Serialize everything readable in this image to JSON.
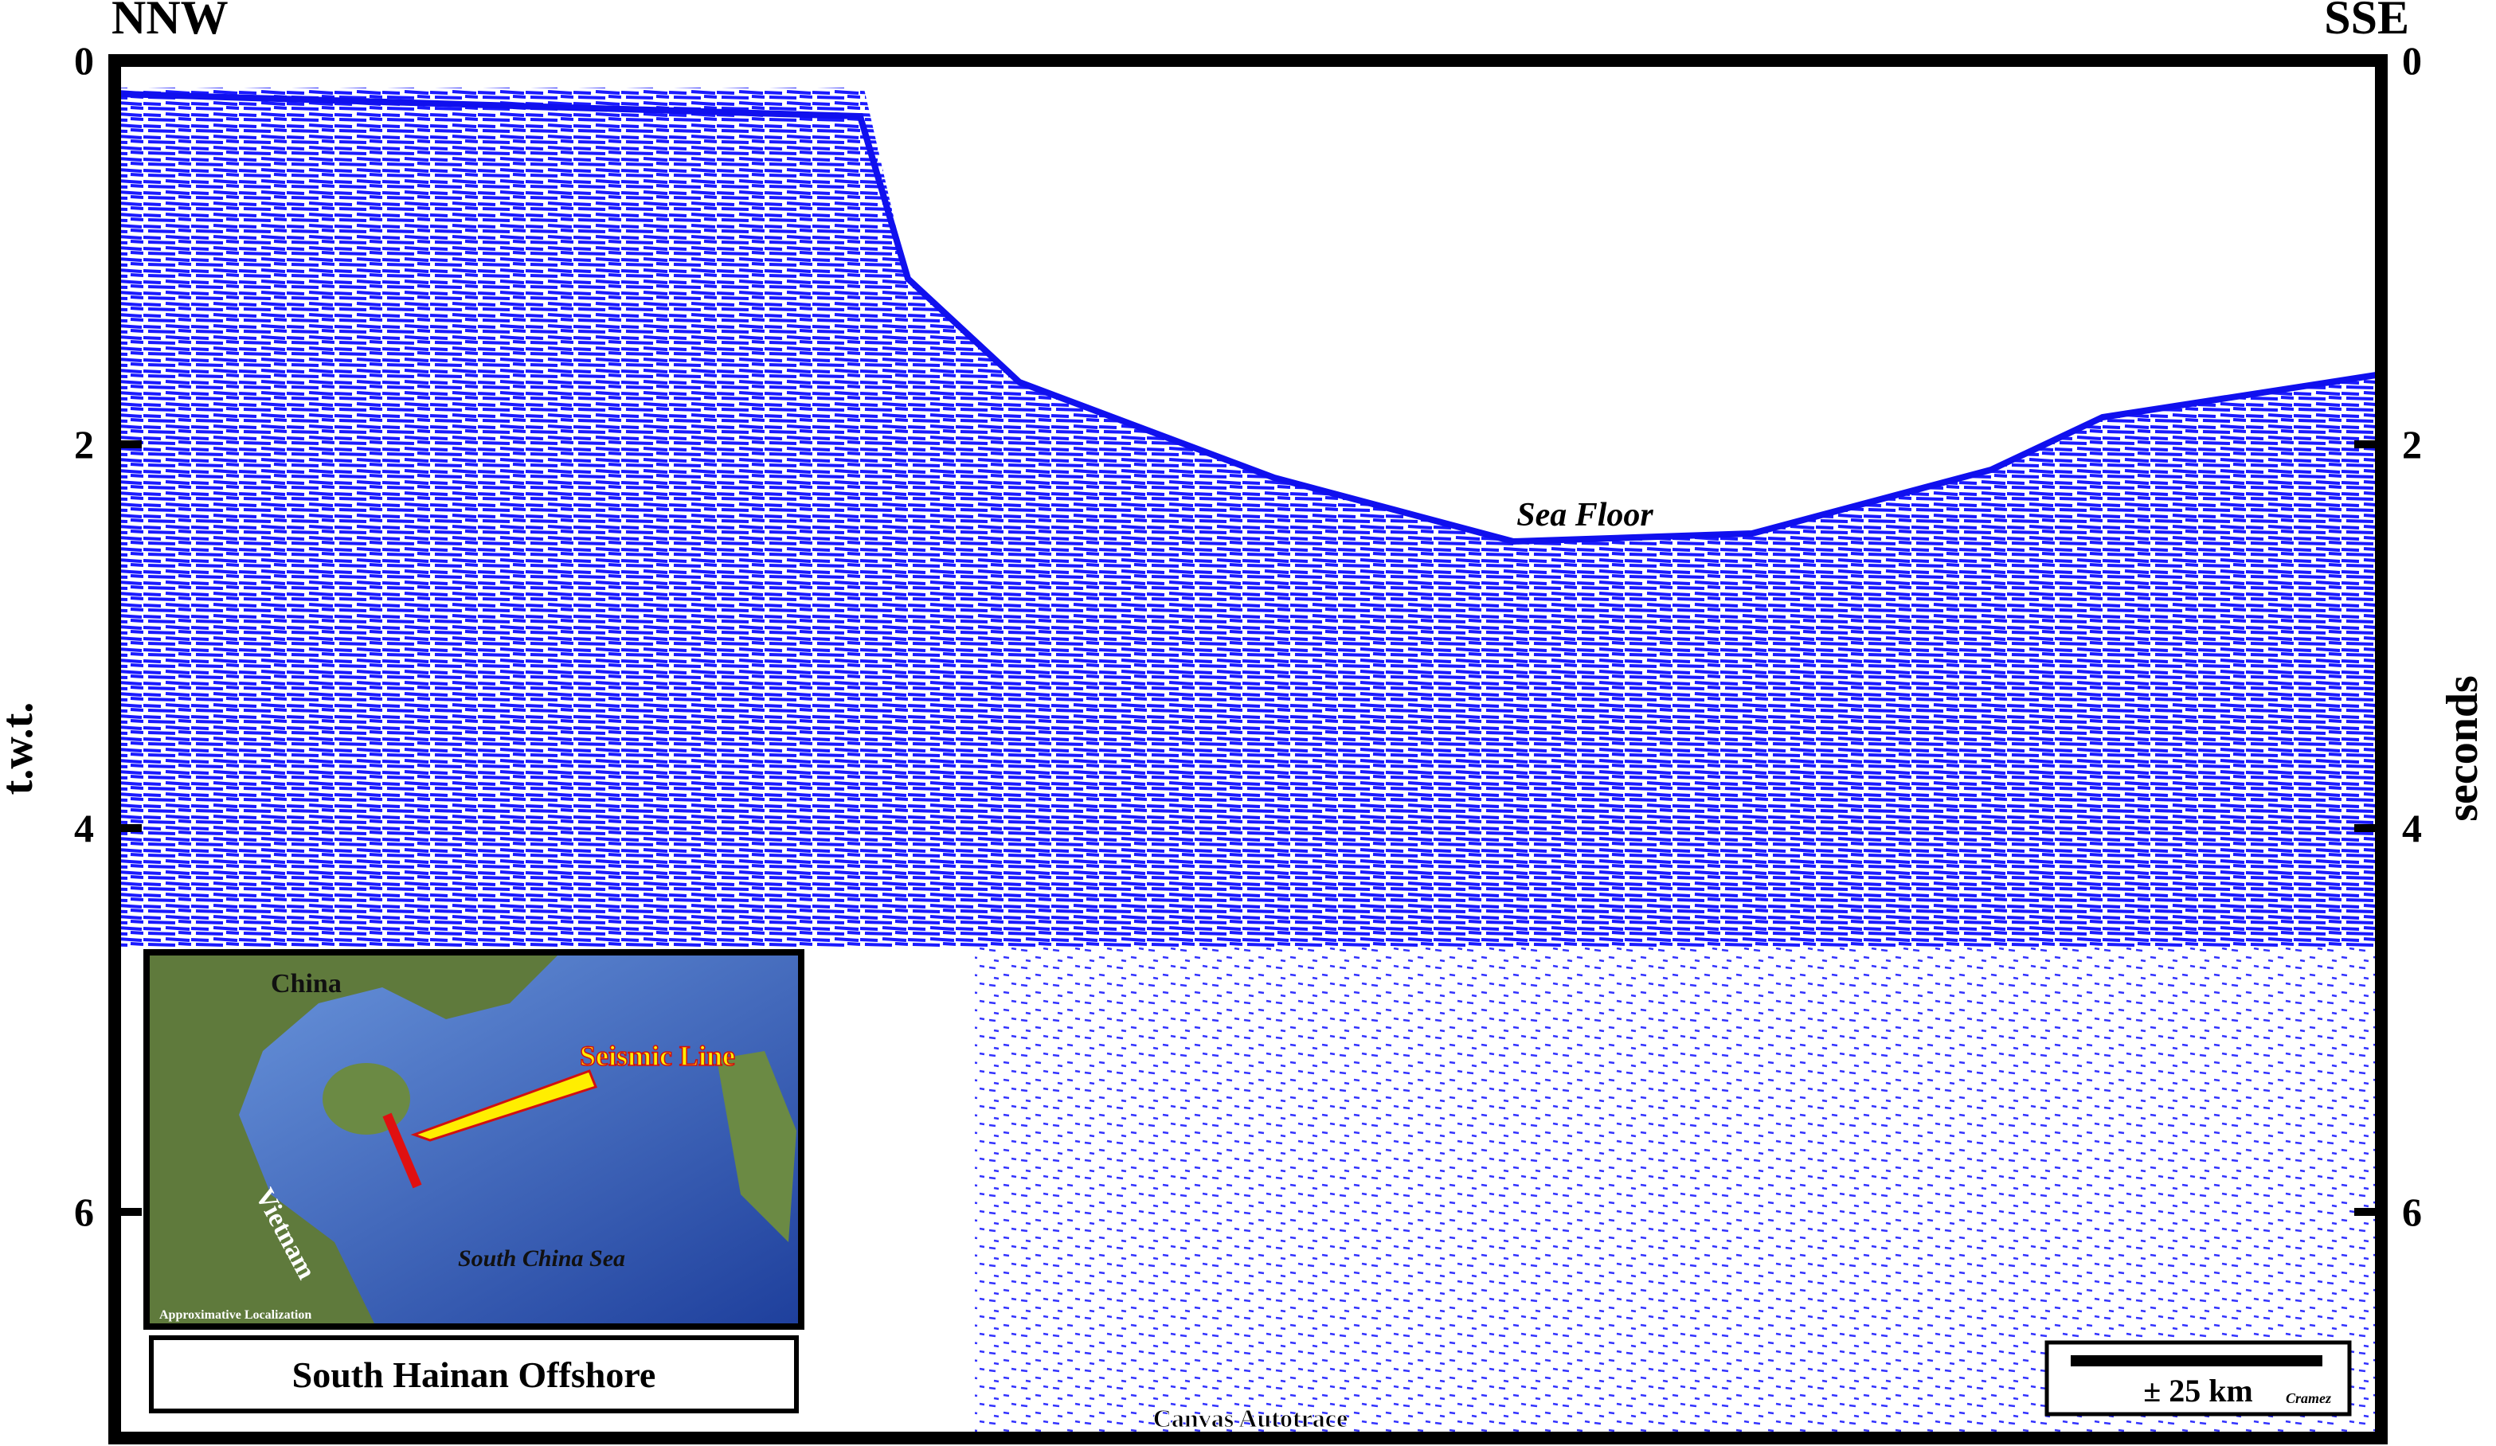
{
  "left_axis": {
    "label": "t.w.t.",
    "ticks": [
      0,
      2,
      4,
      6
    ]
  },
  "right_axis": {
    "label": "seconds",
    "ticks": [
      0,
      2,
      4,
      6
    ]
  },
  "directions": {
    "left": "NNW",
    "right": "SSE"
  },
  "annotations": {
    "sea_floor": "Sea Floor",
    "software": "Canvas Autotrace"
  },
  "map": {
    "labels": {
      "china": "China",
      "vietnam": "Vietnam",
      "sea": "South China Sea",
      "seismic_line": "Seismic Line",
      "note": "Approximative Localization"
    },
    "caption": "South Hainan Offshore"
  },
  "scale_bar": {
    "label": "± 25 km",
    "author": "Cramez"
  }
}
